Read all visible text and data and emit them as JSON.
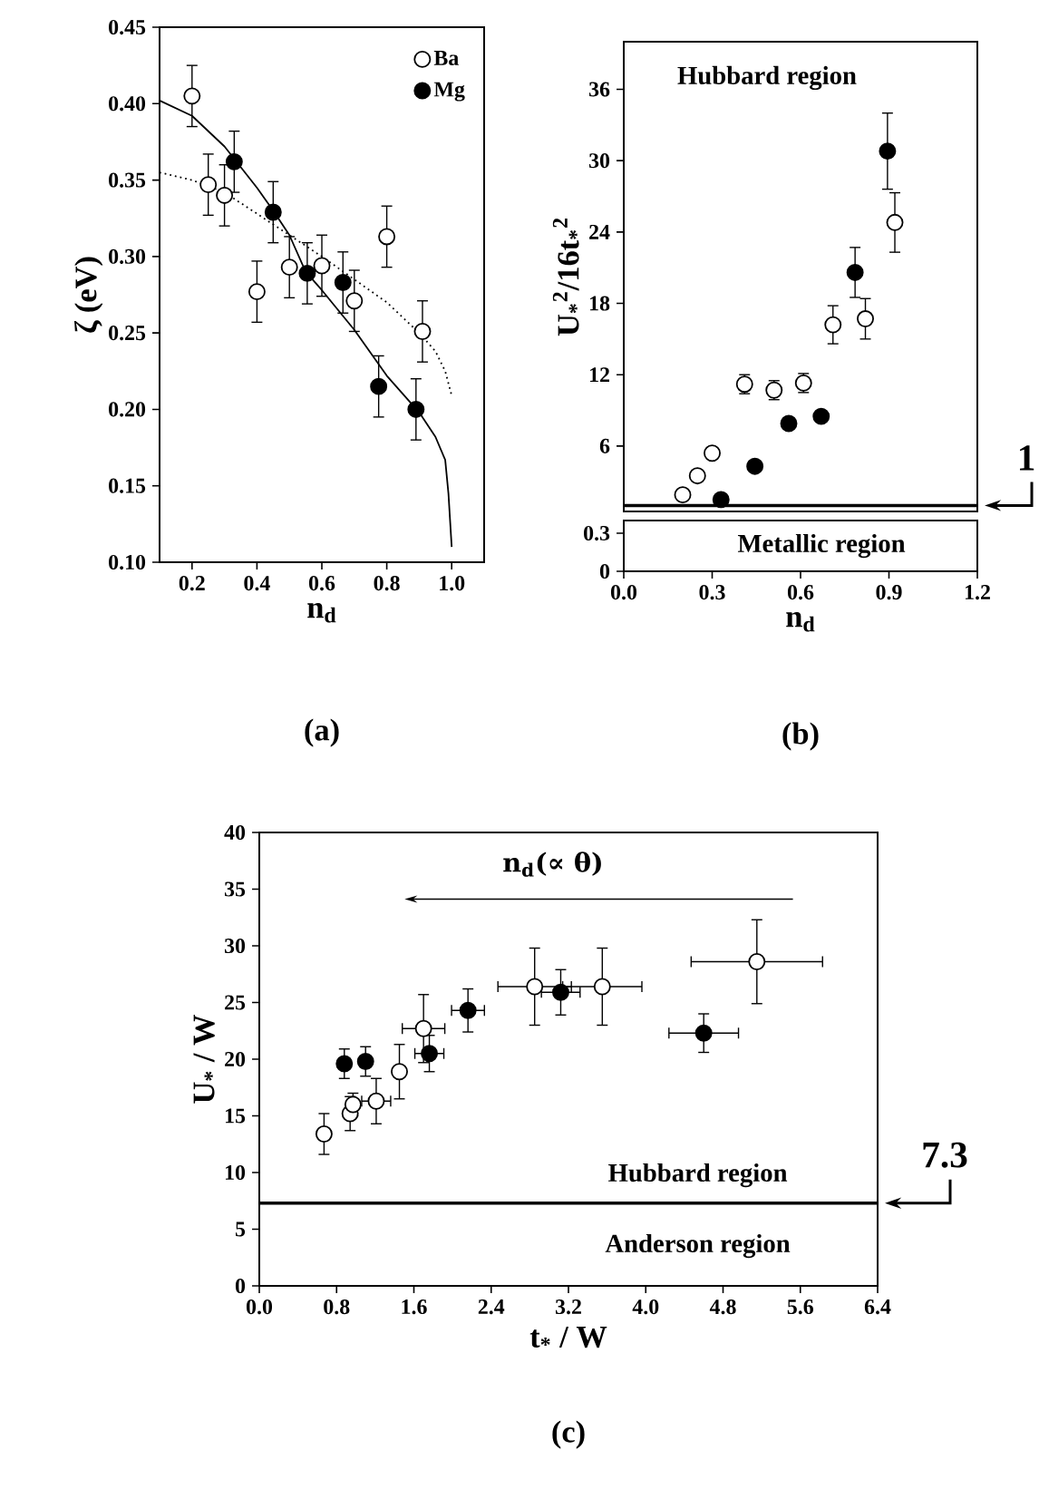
{
  "chart_data": [
    {
      "type": "scatter",
      "title": "(a)",
      "xlabel": "n$_{d}$",
      "ylabel": "ζ (eV)",
      "xlim": [
        0.1,
        1.1
      ],
      "xticks": [
        0.2,
        0.4,
        0.6,
        0.8,
        {
          "value": 1.0,
          "label": "1.0"
        }
      ],
      "ylim": [
        0.1,
        0.45
      ],
      "yticks": [
        {
          "value": 0.1,
          "label": "0.10"
        },
        0.15,
        {
          "value": 0.2,
          "label": "0.20"
        },
        0.25,
        {
          "value": 0.3,
          "label": "0.30"
        },
        0.35,
        {
          "value": 0.4,
          "label": "0.40"
        },
        0.45
      ],
      "legend": "top right",
      "marker": "circle",
      "series": [
        {
          "type": "line",
          "color": "#000000",
          "line_style": "solid",
          "marker": "none",
          "x": [
            0.1,
            0.2,
            0.3,
            0.4,
            0.45,
            0.5,
            0.55,
            0.6,
            0.7,
            0.8,
            0.9,
            0.95,
            0.98,
            0.99,
            1.0
          ],
          "values": [
            0.402,
            0.392,
            0.372,
            0.345,
            0.33,
            0.314,
            0.29,
            0.278,
            0.252,
            0.222,
            0.198,
            0.182,
            0.167,
            0.145,
            0.11
          ]
        },
        {
          "type": "line",
          "color": "#000000",
          "line_style": "dotted",
          "marker": "none",
          "x": [
            0.1,
            0.2,
            0.3,
            0.4,
            0.5,
            0.6,
            0.7,
            0.8,
            0.9,
            0.95,
            0.98,
            1.0
          ],
          "values": [
            0.355,
            0.35,
            0.342,
            0.328,
            0.314,
            0.3,
            0.285,
            0.27,
            0.25,
            0.238,
            0.225,
            0.209
          ]
        },
        {
          "name": "Ba",
          "color": "#ffffff",
          "x": [
            0.2,
            0.25,
            0.3,
            0.4,
            0.5,
            0.6,
            0.7,
            0.8,
            0.91
          ],
          "values": [
            0.405,
            0.347,
            0.34,
            0.277,
            0.293,
            0.294,
            0.271,
            0.313,
            0.251
          ],
          "errors": [
            0.02,
            0.02,
            0.02,
            0.02,
            0.02,
            0.02,
            0.02,
            0.02,
            0.02
          ]
        },
        {
          "name": "Mg",
          "color": "#000000",
          "x": [
            0.33,
            0.45,
            0.555,
            0.665,
            0.775,
            0.89
          ],
          "values": [
            0.362,
            0.329,
            0.289,
            0.283,
            0.215,
            0.2
          ],
          "errors": [
            0.02,
            0.02,
            0.02,
            0.02,
            0.02,
            0.02
          ]
        }
      ]
    },
    {
      "type": "scatter",
      "ylabel": "U$_{*}$$^{2}$/16t$_{*}$$^{2}$",
      "xlim": [
        0,
        1.2
      ],
      "ylim": [
        0.5,
        40
      ],
      "yticks": [
        6,
        12,
        18,
        24,
        30,
        36
      ],
      "tick_labels": "y",
      "marker": "circle",
      "ref_lines": [
        {
          "axis": "y",
          "value": 1,
          "label": "1",
          "line_style": "solid"
        }
      ],
      "annotations": [
        "Hubbard region"
      ],
      "series": [
        {
          "color": "#ffffff",
          "x": [
            0.2,
            0.25,
            0.3,
            0.41,
            0.51,
            0.61,
            0.71,
            0.82,
            0.92
          ],
          "values": [
            1.9,
            3.5,
            5.4,
            11.2,
            10.7,
            11.3,
            16.2,
            16.7,
            24.8
          ],
          "errors": [
            0.4,
            0.4,
            0.4,
            0.8,
            0.8,
            0.8,
            1.6,
            1.7,
            2.5
          ]
        },
        {
          "color": "#000000",
          "x": [
            0.33,
            0.445,
            0.56,
            0.67,
            0.785,
            0.895
          ],
          "values": [
            1.5,
            4.3,
            7.9,
            8.5,
            20.6,
            30.8
          ],
          "errors": [
            null,
            null,
            null,
            null,
            2.1,
            3.2
          ]
        }
      ]
    },
    {
      "type": "scatter",
      "title": "(b)",
      "xlabel": "n$_{d}$",
      "xlim": [
        0,
        1.2
      ],
      "xticks": [
        {
          "value": 0,
          "label": "0.0"
        },
        0.3,
        0.6,
        0.9,
        1.2
      ],
      "ylim": [
        0,
        0.4
      ],
      "yticks": [
        0,
        0.3
      ],
      "annotations": [
        "Metallic region"
      ]
    },
    {
      "type": "scatter",
      "title": "(c)",
      "xlabel": "t$_{*}$ / W",
      "ylabel": "U$_{*}$ / W",
      "xlim": [
        0,
        6.4
      ],
      "xticks": [
        {
          "value": 0,
          "label": "0.0"
        },
        0.8,
        1.6,
        2.4,
        3.2,
        {
          "value": 4.0,
          "label": "4.0"
        },
        4.8,
        5.6,
        6.4
      ],
      "ylim": [
        0,
        40
      ],
      "yticks": [
        0,
        5,
        10,
        15,
        20,
        25,
        30,
        35,
        40
      ],
      "marker": "circle",
      "ref_lines": [
        {
          "axis": "y",
          "value": 7.3,
          "label": "7.3",
          "line_style": "solid"
        }
      ],
      "annotations": [
        "n$_{d}$(∝ θ)",
        "Hubbard region",
        "Anderson region"
      ],
      "series": [
        {
          "color": "#ffffff",
          "x": [
            0.67,
            0.94,
            0.97,
            1.21,
            1.45,
            1.7,
            2.85,
            3.55,
            5.15
          ],
          "values": [
            13.4,
            15.2,
            16.0,
            16.3,
            18.9,
            22.7,
            26.4,
            26.4,
            28.6
          ],
          "errors": [
            1.8,
            1.5,
            1.0,
            2.0,
            2.4,
            3.0,
            3.4,
            3.4,
            3.7
          ],
          "xerrors": [
            null,
            null,
            null,
            0.15,
            null,
            0.22,
            0.38,
            0.41,
            0.68
          ]
        },
        {
          "color": "#000000",
          "x": [
            0.88,
            1.1,
            1.76,
            2.16,
            3.12,
            4.6
          ],
          "values": [
            19.6,
            19.8,
            20.5,
            24.3,
            25.9,
            22.3
          ],
          "errors": [
            1.3,
            1.3,
            1.6,
            1.9,
            2.0,
            1.7
          ],
          "xerrors": [
            null,
            null,
            0.15,
            0.17,
            0.2,
            0.36
          ]
        }
      ]
    }
  ]
}
